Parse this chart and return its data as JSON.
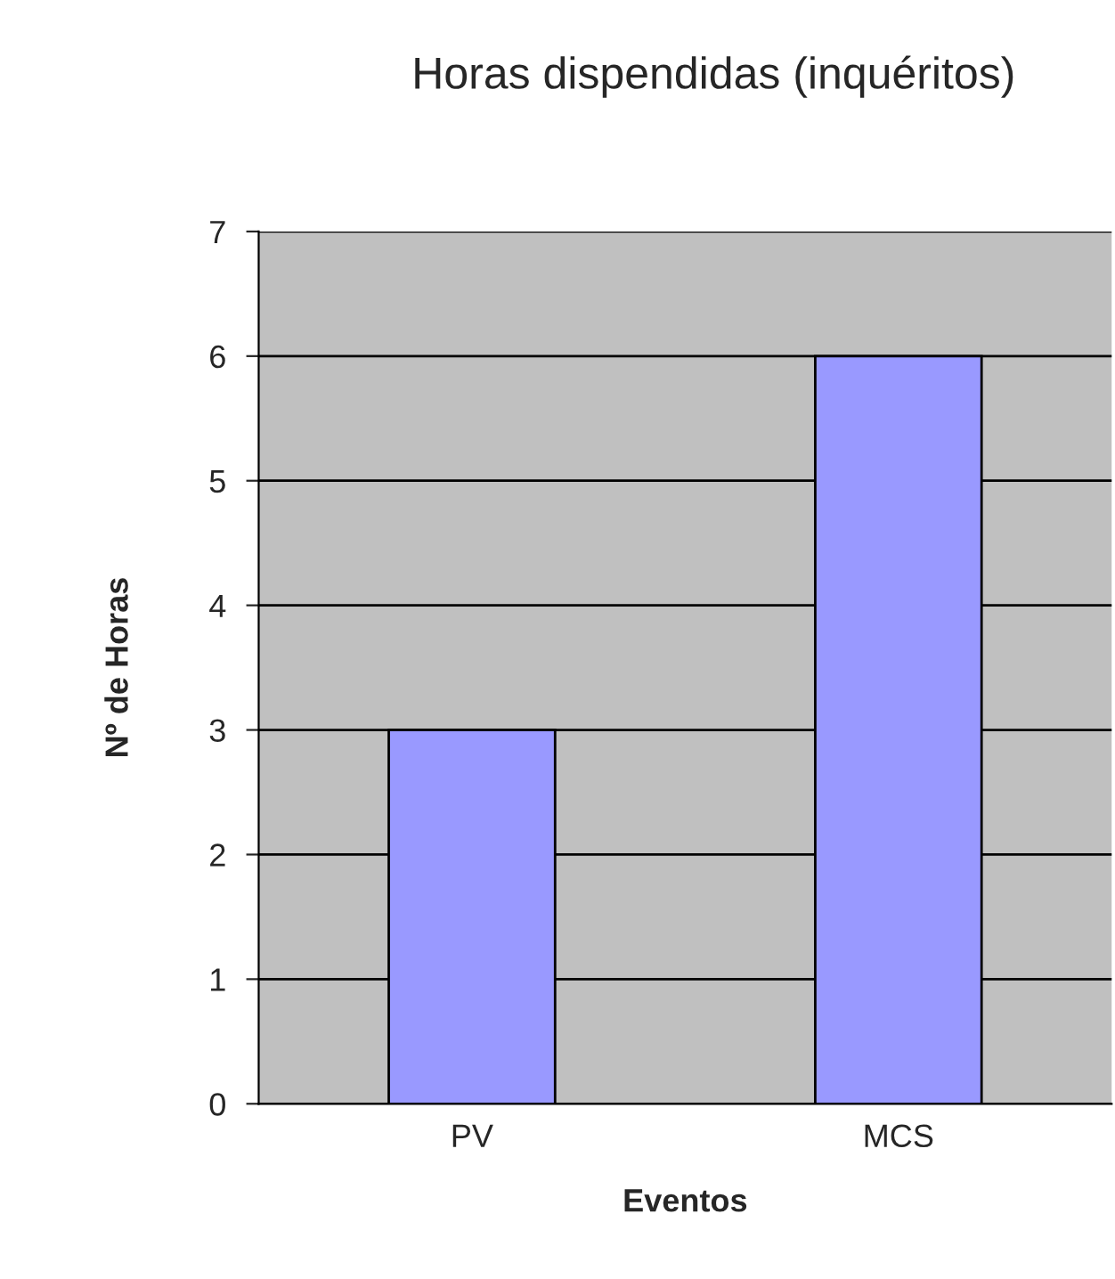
{
  "chart_data": {
    "type": "bar",
    "title": "Horas dispendidas (inquéritos)",
    "xlabel": "Eventos",
    "ylabel": "Nº de Horas",
    "categories": [
      "PV",
      "MCS"
    ],
    "values": [
      3,
      6
    ],
    "color": "#9999ff",
    "ylim": [
      0,
      7
    ],
    "yticks": [
      0,
      1,
      2,
      3,
      4,
      5,
      6,
      7
    ],
    "grid": "y"
  }
}
